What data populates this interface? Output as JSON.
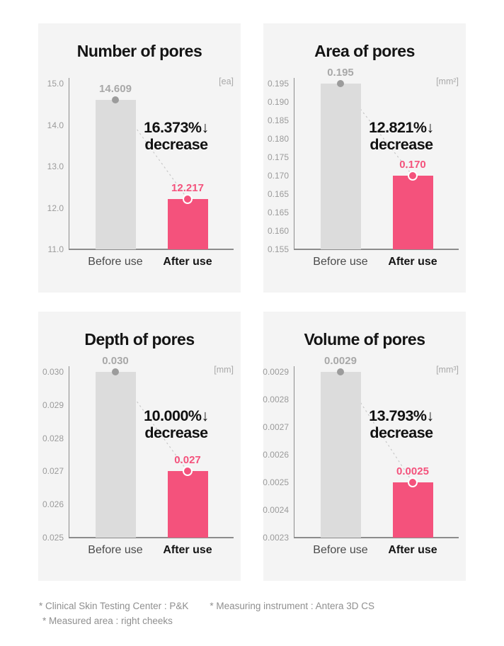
{
  "colors": {
    "accent_pink": "#f4527c",
    "bar_gray": "#dcdcdc",
    "dot_gray": "#9c9c9c",
    "panel_bg": "#f4f4f4",
    "axis": "#8c8c8c",
    "tick_text": "#9b9b9b",
    "muted_text": "#a8a8a8",
    "before_label": "#4a4a4a",
    "dark_text": "#141414",
    "dashed_line": "#c8c8c8",
    "footnote": "#8f8f8f"
  },
  "chart_data": [
    {
      "type": "bar",
      "title": "Number of pores",
      "unit": "[ea]",
      "categories": [
        "Before use",
        "After use"
      ],
      "values": [
        14.609,
        12.217
      ],
      "value_labels": [
        "14.609",
        "12.217"
      ],
      "annotation": {
        "percent": "16.373%↓",
        "word": "decrease"
      },
      "yticks": [
        "15.0",
        "14.0",
        "13.0",
        "12.0",
        "11.0"
      ],
      "ylim": [
        11.0,
        15.0
      ],
      "bar_top_tick_pos": [
        0.391,
        2.783
      ],
      "grid": false,
      "legend": false
    },
    {
      "type": "bar",
      "title": "Area of pores",
      "unit": "[mm²]",
      "categories": [
        "Before use",
        "After use"
      ],
      "values": [
        0.195,
        0.17
      ],
      "value_labels": [
        "0.195",
        "0.170"
      ],
      "annotation": {
        "percent": "12.821%↓",
        "word": "decrease"
      },
      "yticks": [
        "0.195",
        "0.190",
        "0.185",
        "0.180",
        "0.175",
        "0.170",
        "0.165",
        "0.165",
        "0.160",
        "0.155"
      ],
      "ylim": [
        0.155,
        0.195
      ],
      "bar_top_tick_pos": [
        0,
        5
      ],
      "grid": false,
      "legend": false
    },
    {
      "type": "bar",
      "title": "Depth of pores",
      "unit": "[mm]",
      "categories": [
        "Before use",
        "After use"
      ],
      "values": [
        0.03,
        0.027
      ],
      "value_labels": [
        "0.030",
        "0.027"
      ],
      "annotation": {
        "percent": "10.000%↓",
        "word": "decrease"
      },
      "yticks": [
        "0.030",
        "0.029",
        "0.028",
        "0.027",
        "0.026",
        "0.025"
      ],
      "ylim": [
        0.025,
        0.03
      ],
      "bar_top_tick_pos": [
        0,
        3
      ],
      "grid": false,
      "legend": false
    },
    {
      "type": "bar",
      "title": "Volume of pores",
      "unit": "[mm³]",
      "categories": [
        "Before use",
        "After use"
      ],
      "values": [
        0.0029,
        0.0025
      ],
      "value_labels": [
        "0.0029",
        "0.0025"
      ],
      "annotation": {
        "percent": "13.793%↓",
        "word": "decrease"
      },
      "yticks": [
        "0.0029",
        "0.0028",
        "0.0027",
        "0.0026",
        "0.0025",
        "0.0024",
        "0.0023"
      ],
      "ylim": [
        0.0023,
        0.0029
      ],
      "bar_top_tick_pos": [
        0,
        4
      ],
      "grid": false,
      "legend": false
    }
  ],
  "footer": {
    "notes": [
      "* Clinical Skin Testing Center : P&K",
      "* Measuring instrument : Antera 3D CS",
      "* Measured area : right cheeks"
    ]
  }
}
